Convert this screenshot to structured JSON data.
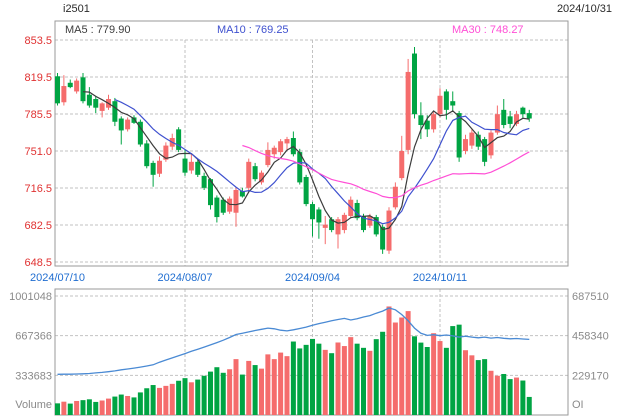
{
  "header": {
    "symbol": "i2501",
    "date": "2024/10/31"
  },
  "ma_labels": {
    "ma5": "MA5 : 779.90",
    "ma10": "MA10 : 769.25",
    "ma30": "MA30 : 748.27"
  },
  "colors": {
    "up_candle": "#f56c6c",
    "down_candle": "#00a443",
    "ma5_line": "#3c3c3c",
    "ma10_line": "#3f51cf",
    "ma30_line": "#ff4fd6",
    "oi_line": "#4a8ad4",
    "price_tick_text": "#e03232",
    "date_tick_text": "#1f6dd0",
    "volume_tick_text": "#8a8a8a",
    "header_text": "#2a2a2a",
    "border": "#9a9a9a",
    "grid": "#c2c2c2"
  },
  "chart_data": {
    "type": "candlestick_with_volume",
    "title": "i2501 daily chart with MA5/MA10/MA30, volume and open interest",
    "price_axis": {
      "ticks": [
        "853.5",
        "819.5",
        "785.5",
        "751.0",
        "716.5",
        "682.5",
        "648.5"
      ],
      "max": 853.5,
      "min": 648.5
    },
    "x_axis": {
      "labels": [
        "2024/07/10",
        "2024/08/07",
        "2024/09/04",
        "2024/10/11"
      ],
      "label_days": [
        0,
        20,
        40,
        60
      ]
    },
    "volume_axis_left": {
      "label": "Volume",
      "ticks": [
        1001048,
        667366,
        333683
      ],
      "max": 1001048
    },
    "volume_axis_right": {
      "label": "OI",
      "ticks": [
        687510,
        458340,
        229170
      ],
      "max": 687510
    },
    "ma_periods": [
      5,
      10,
      30
    ],
    "candles_ohlc": [
      [
        820,
        823,
        793,
        795
      ],
      [
        796,
        821,
        793,
        811
      ],
      [
        814,
        817,
        809,
        810
      ],
      [
        806,
        818,
        804,
        816
      ],
      [
        819,
        823,
        795,
        797
      ],
      [
        803,
        810,
        791,
        793
      ],
      [
        799,
        802,
        786,
        791
      ],
      [
        788,
        796,
        782,
        795
      ],
      [
        791,
        803,
        789,
        799
      ],
      [
        797,
        800,
        774,
        778
      ],
      [
        781,
        783,
        757,
        770
      ],
      [
        771,
        782,
        769,
        780
      ],
      [
        782,
        784,
        776,
        777
      ],
      [
        778,
        780,
        755,
        757
      ],
      [
        758,
        761,
        735,
        737
      ],
      [
        740,
        742,
        718,
        729
      ],
      [
        730,
        746,
        727,
        742
      ],
      [
        743,
        759,
        741,
        756
      ],
      [
        755,
        767,
        752,
        763
      ],
      [
        771,
        773,
        750,
        752
      ],
      [
        744,
        752,
        728,
        731
      ],
      [
        733,
        749,
        730,
        741
      ],
      [
        741,
        744,
        727,
        729
      ],
      [
        728,
        731,
        715,
        717
      ],
      [
        725,
        726,
        697,
        701
      ],
      [
        708,
        710,
        685,
        690
      ],
      [
        706,
        708,
        692,
        694
      ],
      [
        695,
        709,
        693,
        707
      ],
      [
        694,
        717,
        681,
        715
      ],
      [
        714,
        717,
        708,
        709
      ],
      [
        717,
        744,
        713,
        741
      ],
      [
        737,
        740,
        723,
        725
      ],
      [
        722,
        733,
        720,
        731
      ],
      [
        738,
        759,
        736,
        752
      ],
      [
        748,
        756,
        744,
        754
      ],
      [
        750,
        762,
        747,
        760
      ],
      [
        758,
        764,
        752,
        762
      ],
      [
        763,
        769,
        746,
        748
      ],
      [
        750,
        753,
        720,
        722
      ],
      [
        727,
        729,
        700,
        702
      ],
      [
        702,
        704,
        672,
        688
      ],
      [
        697,
        699,
        670,
        685
      ],
      [
        680,
        691,
        665,
        683
      ],
      [
        688,
        690,
        676,
        678
      ],
      [
        674,
        690,
        661,
        688
      ],
      [
        678,
        694,
        675,
        692
      ],
      [
        691,
        709,
        689,
        706
      ],
      [
        703,
        706,
        687,
        689
      ],
      [
        691,
        693,
        676,
        678
      ],
      [
        682,
        693,
        680,
        691
      ],
      [
        690,
        692,
        672,
        674
      ],
      [
        681,
        683,
        656,
        660
      ],
      [
        659,
        699,
        656,
        696
      ],
      [
        699,
        722,
        697,
        718
      ],
      [
        726,
        765,
        724,
        751
      ],
      [
        752,
        836,
        748,
        824
      ],
      [
        841,
        847,
        781,
        785
      ],
      [
        784,
        796,
        762,
        775
      ],
      [
        779,
        784,
        764,
        771
      ],
      [
        771,
        788,
        768,
        785
      ],
      [
        785,
        809,
        782,
        802
      ],
      [
        806,
        808,
        780,
        789
      ],
      [
        797,
        806,
        788,
        793
      ],
      [
        786,
        788,
        741,
        745
      ],
      [
        751,
        766,
        748,
        762
      ],
      [
        756,
        771,
        753,
        768
      ],
      [
        766,
        769,
        752,
        755
      ],
      [
        762,
        764,
        737,
        741
      ],
      [
        747,
        770,
        744,
        768
      ],
      [
        768,
        793,
        766,
        785
      ],
      [
        789,
        799,
        772,
        775
      ],
      [
        783,
        788,
        772,
        776
      ],
      [
        776,
        788,
        774,
        785
      ],
      [
        791,
        792,
        781,
        785
      ],
      [
        786,
        789,
        778,
        781
      ]
    ],
    "volumes": [
      98000,
      112000,
      96000,
      118000,
      125000,
      132000,
      110000,
      122000,
      138000,
      155000,
      172000,
      160000,
      148000,
      190000,
      225000,
      252000,
      228000,
      245000,
      262000,
      288000,
      310000,
      275000,
      298000,
      330000,
      365000,
      402000,
      355000,
      385000,
      470000,
      340000,
      455000,
      420000,
      390000,
      510000,
      470000,
      525000,
      495000,
      618000,
      560000,
      590000,
      640000,
      600000,
      548000,
      520000,
      610000,
      580000,
      655000,
      600000,
      565000,
      540000,
      638000,
      700000,
      913000,
      778000,
      820000,
      874000,
      662000,
      609000,
      572000,
      688000,
      622000,
      565000,
      748000,
      760000,
      545000,
      502000,
      462000,
      470000,
      372000,
      330000,
      345000,
      302000,
      315000,
      290000,
      152000
    ],
    "open_interest": [
      235000,
      236000,
      236000,
      237000,
      238000,
      240000,
      243000,
      246000,
      250000,
      255000,
      261000,
      266000,
      271000,
      277000,
      283000,
      290000,
      305000,
      318000,
      330000,
      342000,
      355000,
      368000,
      380000,
      392000,
      405000,
      418000,
      432000,
      448000,
      465000,
      472000,
      480000,
      488000,
      495000,
      502000,
      498000,
      490000,
      486000,
      492000,
      500000,
      508000,
      518000,
      528000,
      536000,
      544000,
      552000,
      558000,
      549000,
      556000,
      566000,
      574000,
      588000,
      600000,
      618000,
      608000,
      580000,
      545000,
      502000,
      472000,
      460000,
      464000,
      458000,
      462000,
      457000,
      450000,
      455000,
      450000,
      446000,
      450000,
      444000,
      448000,
      443000,
      440000,
      442000,
      439000,
      437000
    ]
  }
}
